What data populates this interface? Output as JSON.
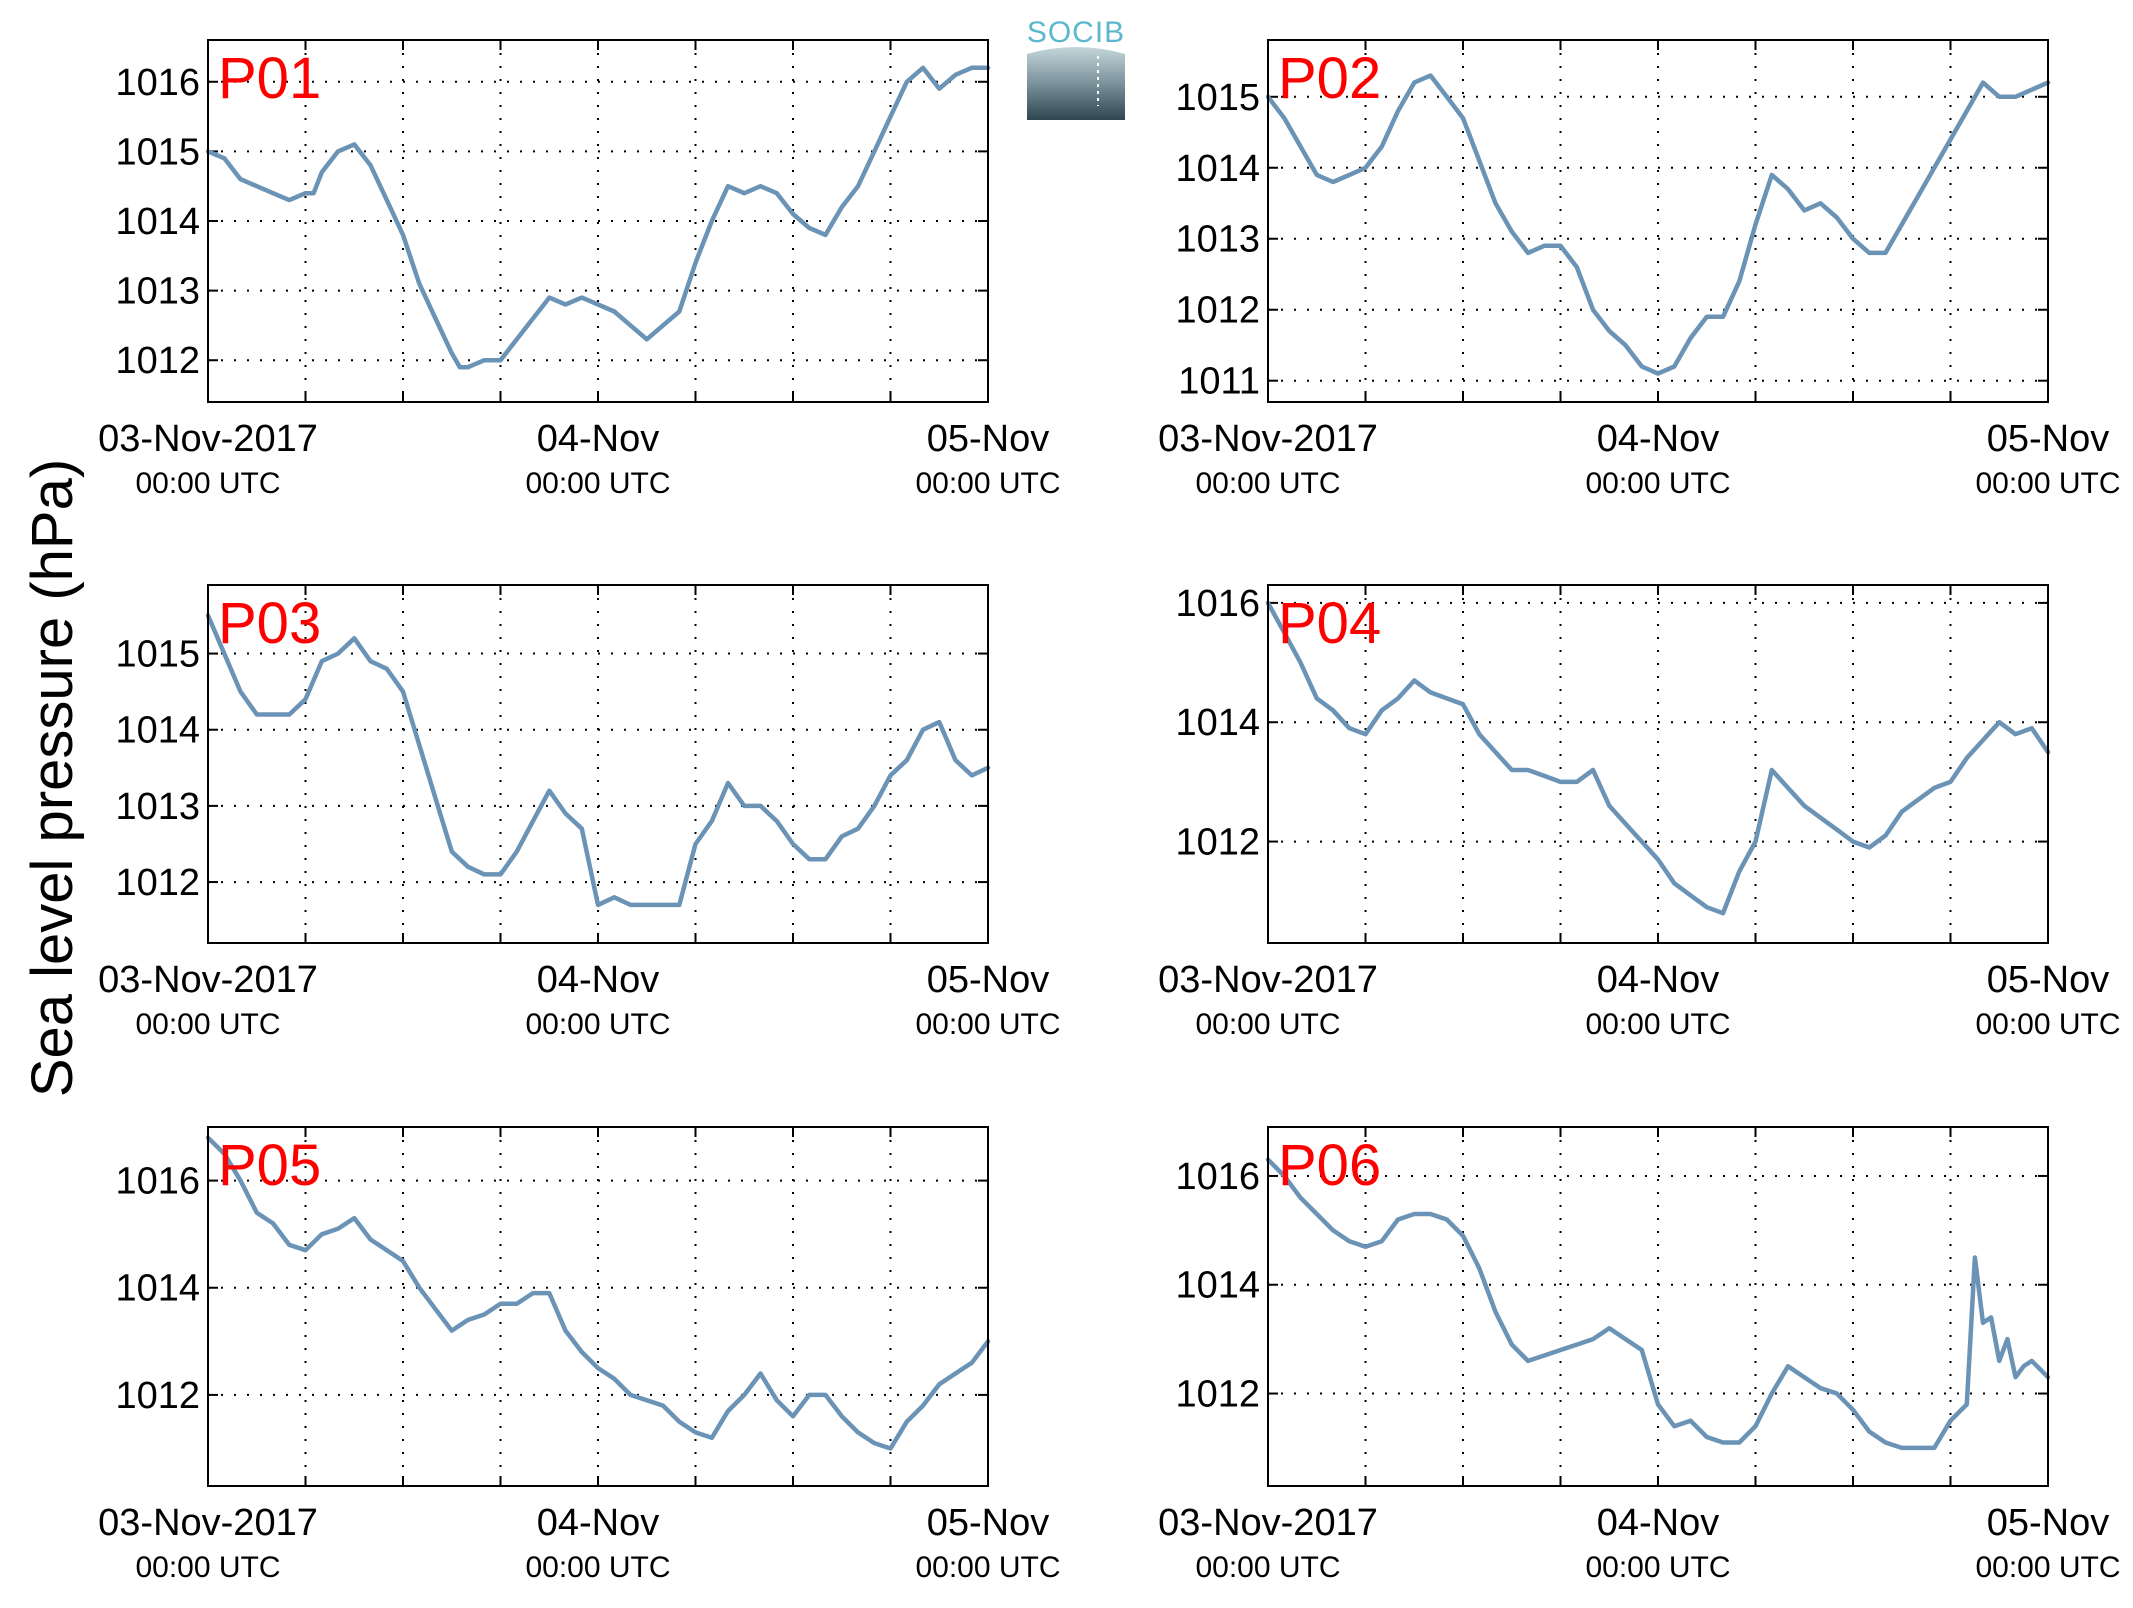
{
  "figure": {
    "ylabel": "Sea level pressure (hPa)",
    "logo": {
      "text": "SOCIB",
      "color": "#5bb8cc"
    },
    "colors": {
      "series": "#6b93b5",
      "panel_label": "#ff0000",
      "axes": "#000000"
    }
  },
  "chart_data": [
    {
      "type": "line",
      "title": "P01",
      "xlim": [
        0,
        48
      ],
      "ylim": [
        1011.4,
        1016.6
      ],
      "yticks": [
        1012,
        1013,
        1014,
        1015,
        1016
      ],
      "xticks_major": [
        {
          "x": 0,
          "date": "03-Nov-2017",
          "time": "00:00 UTC"
        },
        {
          "x": 24,
          "date": "04-Nov",
          "time": "00:00 UTC"
        },
        {
          "x": 48,
          "date": "05-Nov",
          "time": "00:00 UTC"
        }
      ],
      "xgrid": [
        6,
        12,
        18,
        24,
        30,
        36,
        42
      ],
      "grid": true,
      "series": [
        {
          "x": [
            0,
            1,
            2,
            3,
            4,
            5,
            6,
            6.5,
            7,
            8,
            9,
            10,
            11,
            12,
            13,
            14,
            15,
            15.5,
            16,
            17,
            18,
            19,
            20,
            21,
            22,
            23,
            24,
            25,
            26,
            27,
            28,
            29,
            30,
            31,
            32,
            33,
            34,
            35,
            36,
            37,
            38,
            39,
            40,
            41,
            42,
            43,
            44,
            45,
            46,
            47,
            48
          ],
          "y": [
            1015.0,
            1014.9,
            1014.6,
            1014.5,
            1014.4,
            1014.3,
            1014.4,
            1014.4,
            1014.7,
            1015.0,
            1015.1,
            1014.8,
            1014.3,
            1013.8,
            1013.1,
            1012.6,
            1012.1,
            1011.9,
            1011.9,
            1012.0,
            1012.0,
            1012.3,
            1012.6,
            1012.9,
            1012.8,
            1012.9,
            1012.8,
            1012.7,
            1012.5,
            1012.3,
            1012.5,
            1012.7,
            1013.4,
            1014.0,
            1014.5,
            1014.4,
            1014.5,
            1014.4,
            1014.1,
            1013.9,
            1013.8,
            1014.2,
            1014.5,
            1015.0,
            1015.5,
            1016.0,
            1016.2,
            1015.9,
            1016.1,
            1016.2,
            1016.2
          ]
        }
      ]
    },
    {
      "type": "line",
      "title": "P02",
      "xlim": [
        0,
        48
      ],
      "ylim": [
        1010.7,
        1015.8
      ],
      "yticks": [
        1011,
        1012,
        1013,
        1014,
        1015
      ],
      "xticks_major": [
        {
          "x": 0,
          "date": "03-Nov-2017",
          "time": "00:00 UTC"
        },
        {
          "x": 24,
          "date": "04-Nov",
          "time": "00:00 UTC"
        },
        {
          "x": 48,
          "date": "05-Nov",
          "time": "00:00 UTC"
        }
      ],
      "xgrid": [
        6,
        12,
        18,
        24,
        30,
        36,
        42
      ],
      "grid": true,
      "series": [
        {
          "x": [
            0,
            1,
            2,
            3,
            4,
            5,
            6,
            7,
            8,
            9,
            10,
            11,
            12,
            13,
            14,
            15,
            16,
            17,
            18,
            19,
            20,
            21,
            22,
            23,
            24,
            25,
            26,
            27,
            28,
            29,
            30,
            31,
            32,
            33,
            34,
            35,
            36,
            37,
            38,
            39,
            40,
            41,
            42,
            43,
            44,
            45,
            46,
            47,
            48
          ],
          "y": [
            1015.0,
            1014.7,
            1014.3,
            1013.9,
            1013.8,
            1013.9,
            1014.0,
            1014.3,
            1014.8,
            1015.2,
            1015.3,
            1015.0,
            1014.7,
            1014.1,
            1013.5,
            1013.1,
            1012.8,
            1012.9,
            1012.9,
            1012.6,
            1012.0,
            1011.7,
            1011.5,
            1011.2,
            1011.1,
            1011.2,
            1011.6,
            1011.9,
            1011.9,
            1012.4,
            1013.2,
            1013.9,
            1013.7,
            1013.4,
            1013.5,
            1013.3,
            1013.0,
            1012.8,
            1012.8,
            1013.2,
            1013.6,
            1014.0,
            1014.4,
            1014.8,
            1015.2,
            1015.0,
            1015.0,
            1015.1,
            1015.2
          ]
        }
      ]
    },
    {
      "type": "line",
      "title": "P03",
      "xlim": [
        0,
        48
      ],
      "ylim": [
        1011.2,
        1015.9
      ],
      "yticks": [
        1012,
        1013,
        1014,
        1015
      ],
      "xticks_major": [
        {
          "x": 0,
          "date": "03-Nov-2017",
          "time": "00:00 UTC"
        },
        {
          "x": 24,
          "date": "04-Nov",
          "time": "00:00 UTC"
        },
        {
          "x": 48,
          "date": "05-Nov",
          "time": "00:00 UTC"
        }
      ],
      "xgrid": [
        6,
        12,
        18,
        24,
        30,
        36,
        42
      ],
      "grid": true,
      "series": [
        {
          "x": [
            0,
            1,
            2,
            3,
            4,
            5,
            6,
            7,
            8,
            9,
            10,
            11,
            12,
            13,
            14,
            15,
            16,
            17,
            18,
            19,
            20,
            21,
            22,
            23,
            24,
            25,
            26,
            27,
            28,
            29,
            30,
            31,
            32,
            33,
            34,
            35,
            36,
            37,
            38,
            39,
            40,
            41,
            42,
            43,
            44,
            45,
            46,
            47,
            48
          ],
          "y": [
            1015.5,
            1015.0,
            1014.5,
            1014.2,
            1014.2,
            1014.2,
            1014.4,
            1014.9,
            1015.0,
            1015.2,
            1014.9,
            1014.8,
            1014.5,
            1013.8,
            1013.1,
            1012.4,
            1012.2,
            1012.1,
            1012.1,
            1012.4,
            1012.8,
            1013.2,
            1012.9,
            1012.7,
            1011.7,
            1011.8,
            1011.7,
            1011.7,
            1011.7,
            1011.7,
            1012.5,
            1012.8,
            1013.3,
            1013.0,
            1013.0,
            1012.8,
            1012.5,
            1012.3,
            1012.3,
            1012.6,
            1012.7,
            1013.0,
            1013.4,
            1013.6,
            1014.0,
            1014.1,
            1013.6,
            1013.4,
            1013.5
          ]
        }
      ]
    },
    {
      "type": "line",
      "title": "P04",
      "xlim": [
        0,
        48
      ],
      "ylim": [
        1010.3,
        1016.3
      ],
      "yticks": [
        1012,
        1014,
        1016
      ],
      "xticks_major": [
        {
          "x": 0,
          "date": "03-Nov-2017",
          "time": "00:00 UTC"
        },
        {
          "x": 24,
          "date": "04-Nov",
          "time": "00:00 UTC"
        },
        {
          "x": 48,
          "date": "05-Nov",
          "time": "00:00 UTC"
        }
      ],
      "xgrid": [
        6,
        12,
        18,
        24,
        30,
        36,
        42
      ],
      "grid": true,
      "series": [
        {
          "x": [
            0,
            1,
            2,
            3,
            4,
            5,
            6,
            7,
            8,
            9,
            10,
            11,
            12,
            13,
            14,
            15,
            16,
            17,
            18,
            19,
            20,
            21,
            22,
            23,
            24,
            25,
            26,
            27,
            28,
            29,
            30,
            31,
            32,
            33,
            34,
            35,
            36,
            37,
            38,
            39,
            40,
            41,
            42,
            43,
            44,
            45,
            46,
            47,
            48
          ],
          "y": [
            1016.0,
            1015.5,
            1015.0,
            1014.4,
            1014.2,
            1013.9,
            1013.8,
            1014.2,
            1014.4,
            1014.7,
            1014.5,
            1014.4,
            1014.3,
            1013.8,
            1013.5,
            1013.2,
            1013.2,
            1013.1,
            1013.0,
            1013.0,
            1013.2,
            1012.6,
            1012.3,
            1012.0,
            1011.7,
            1011.3,
            1011.1,
            1010.9,
            1010.8,
            1011.5,
            1012.0,
            1013.2,
            1012.9,
            1012.6,
            1012.4,
            1012.2,
            1012.0,
            1011.9,
            1012.1,
            1012.5,
            1012.7,
            1012.9,
            1013.0,
            1013.4,
            1013.7,
            1014.0,
            1013.8,
            1013.9,
            1013.5
          ]
        }
      ]
    },
    {
      "type": "line",
      "title": "P05",
      "xlim": [
        0,
        48
      ],
      "ylim": [
        1010.3,
        1017.0
      ],
      "yticks": [
        1012,
        1014,
        1016
      ],
      "xticks_major": [
        {
          "x": 0,
          "date": "03-Nov-2017",
          "time": "00:00 UTC"
        },
        {
          "x": 24,
          "date": "04-Nov",
          "time": "00:00 UTC"
        },
        {
          "x": 48,
          "date": "05-Nov",
          "time": "00:00 UTC"
        }
      ],
      "xgrid": [
        6,
        12,
        18,
        24,
        30,
        36,
        42
      ],
      "grid": true,
      "series": [
        {
          "x": [
            0,
            1,
            2,
            3,
            4,
            5,
            6,
            7,
            8,
            9,
            10,
            11,
            12,
            13,
            14,
            15,
            16,
            17,
            18,
            19,
            20,
            21,
            22,
            23,
            24,
            25,
            26,
            27,
            28,
            29,
            30,
            31,
            32,
            33,
            34,
            35,
            36,
            37,
            38,
            39,
            40,
            41,
            42,
            43,
            44,
            45,
            46,
            47,
            48
          ],
          "y": [
            1016.8,
            1016.5,
            1016.0,
            1015.4,
            1015.2,
            1014.8,
            1014.7,
            1015.0,
            1015.1,
            1015.3,
            1014.9,
            1014.7,
            1014.5,
            1014.0,
            1013.6,
            1013.2,
            1013.4,
            1013.5,
            1013.7,
            1013.7,
            1013.9,
            1013.9,
            1013.2,
            1012.8,
            1012.5,
            1012.3,
            1012.0,
            1011.9,
            1011.8,
            1011.5,
            1011.3,
            1011.2,
            1011.7,
            1012.0,
            1012.4,
            1011.9,
            1011.6,
            1012.0,
            1012.0,
            1011.6,
            1011.3,
            1011.1,
            1011.0,
            1011.5,
            1011.8,
            1012.2,
            1012.4,
            1012.6,
            1013.0
          ]
        }
      ]
    },
    {
      "type": "line",
      "title": "P06",
      "xlim": [
        0,
        48
      ],
      "ylim": [
        1010.3,
        1016.9
      ],
      "yticks": [
        1012,
        1014,
        1016
      ],
      "xticks_major": [
        {
          "x": 0,
          "date": "03-Nov-2017",
          "time": "00:00 UTC"
        },
        {
          "x": 24,
          "date": "04-Nov",
          "time": "00:00 UTC"
        },
        {
          "x": 48,
          "date": "05-Nov",
          "time": "00:00 UTC"
        }
      ],
      "xgrid": [
        6,
        12,
        18,
        24,
        30,
        36,
        42
      ],
      "grid": true,
      "series": [
        {
          "x": [
            0,
            1,
            2,
            3,
            4,
            5,
            6,
            7,
            8,
            9,
            10,
            11,
            12,
            13,
            14,
            15,
            16,
            17,
            18,
            19,
            20,
            21,
            22,
            23,
            24,
            25,
            26,
            27,
            28,
            29,
            30,
            31,
            32,
            33,
            34,
            35,
            36,
            37,
            38,
            39,
            40,
            41,
            42,
            43,
            43.5,
            44,
            44.5,
            45,
            45.5,
            46,
            46.5,
            47,
            48
          ],
          "y": [
            1016.3,
            1016.0,
            1015.6,
            1015.3,
            1015.0,
            1014.8,
            1014.7,
            1014.8,
            1015.2,
            1015.3,
            1015.3,
            1015.2,
            1014.9,
            1014.3,
            1013.5,
            1012.9,
            1012.6,
            1012.7,
            1012.8,
            1012.9,
            1013.0,
            1013.2,
            1013.0,
            1012.8,
            1011.8,
            1011.4,
            1011.5,
            1011.2,
            1011.1,
            1011.1,
            1011.4,
            1012.0,
            1012.5,
            1012.3,
            1012.1,
            1012.0,
            1011.7,
            1011.3,
            1011.1,
            1011.0,
            1011.0,
            1011.0,
            1011.5,
            1011.8,
            1014.5,
            1013.3,
            1013.4,
            1012.6,
            1013.0,
            1012.3,
            1012.5,
            1012.6,
            1012.3
          ]
        }
      ]
    }
  ]
}
